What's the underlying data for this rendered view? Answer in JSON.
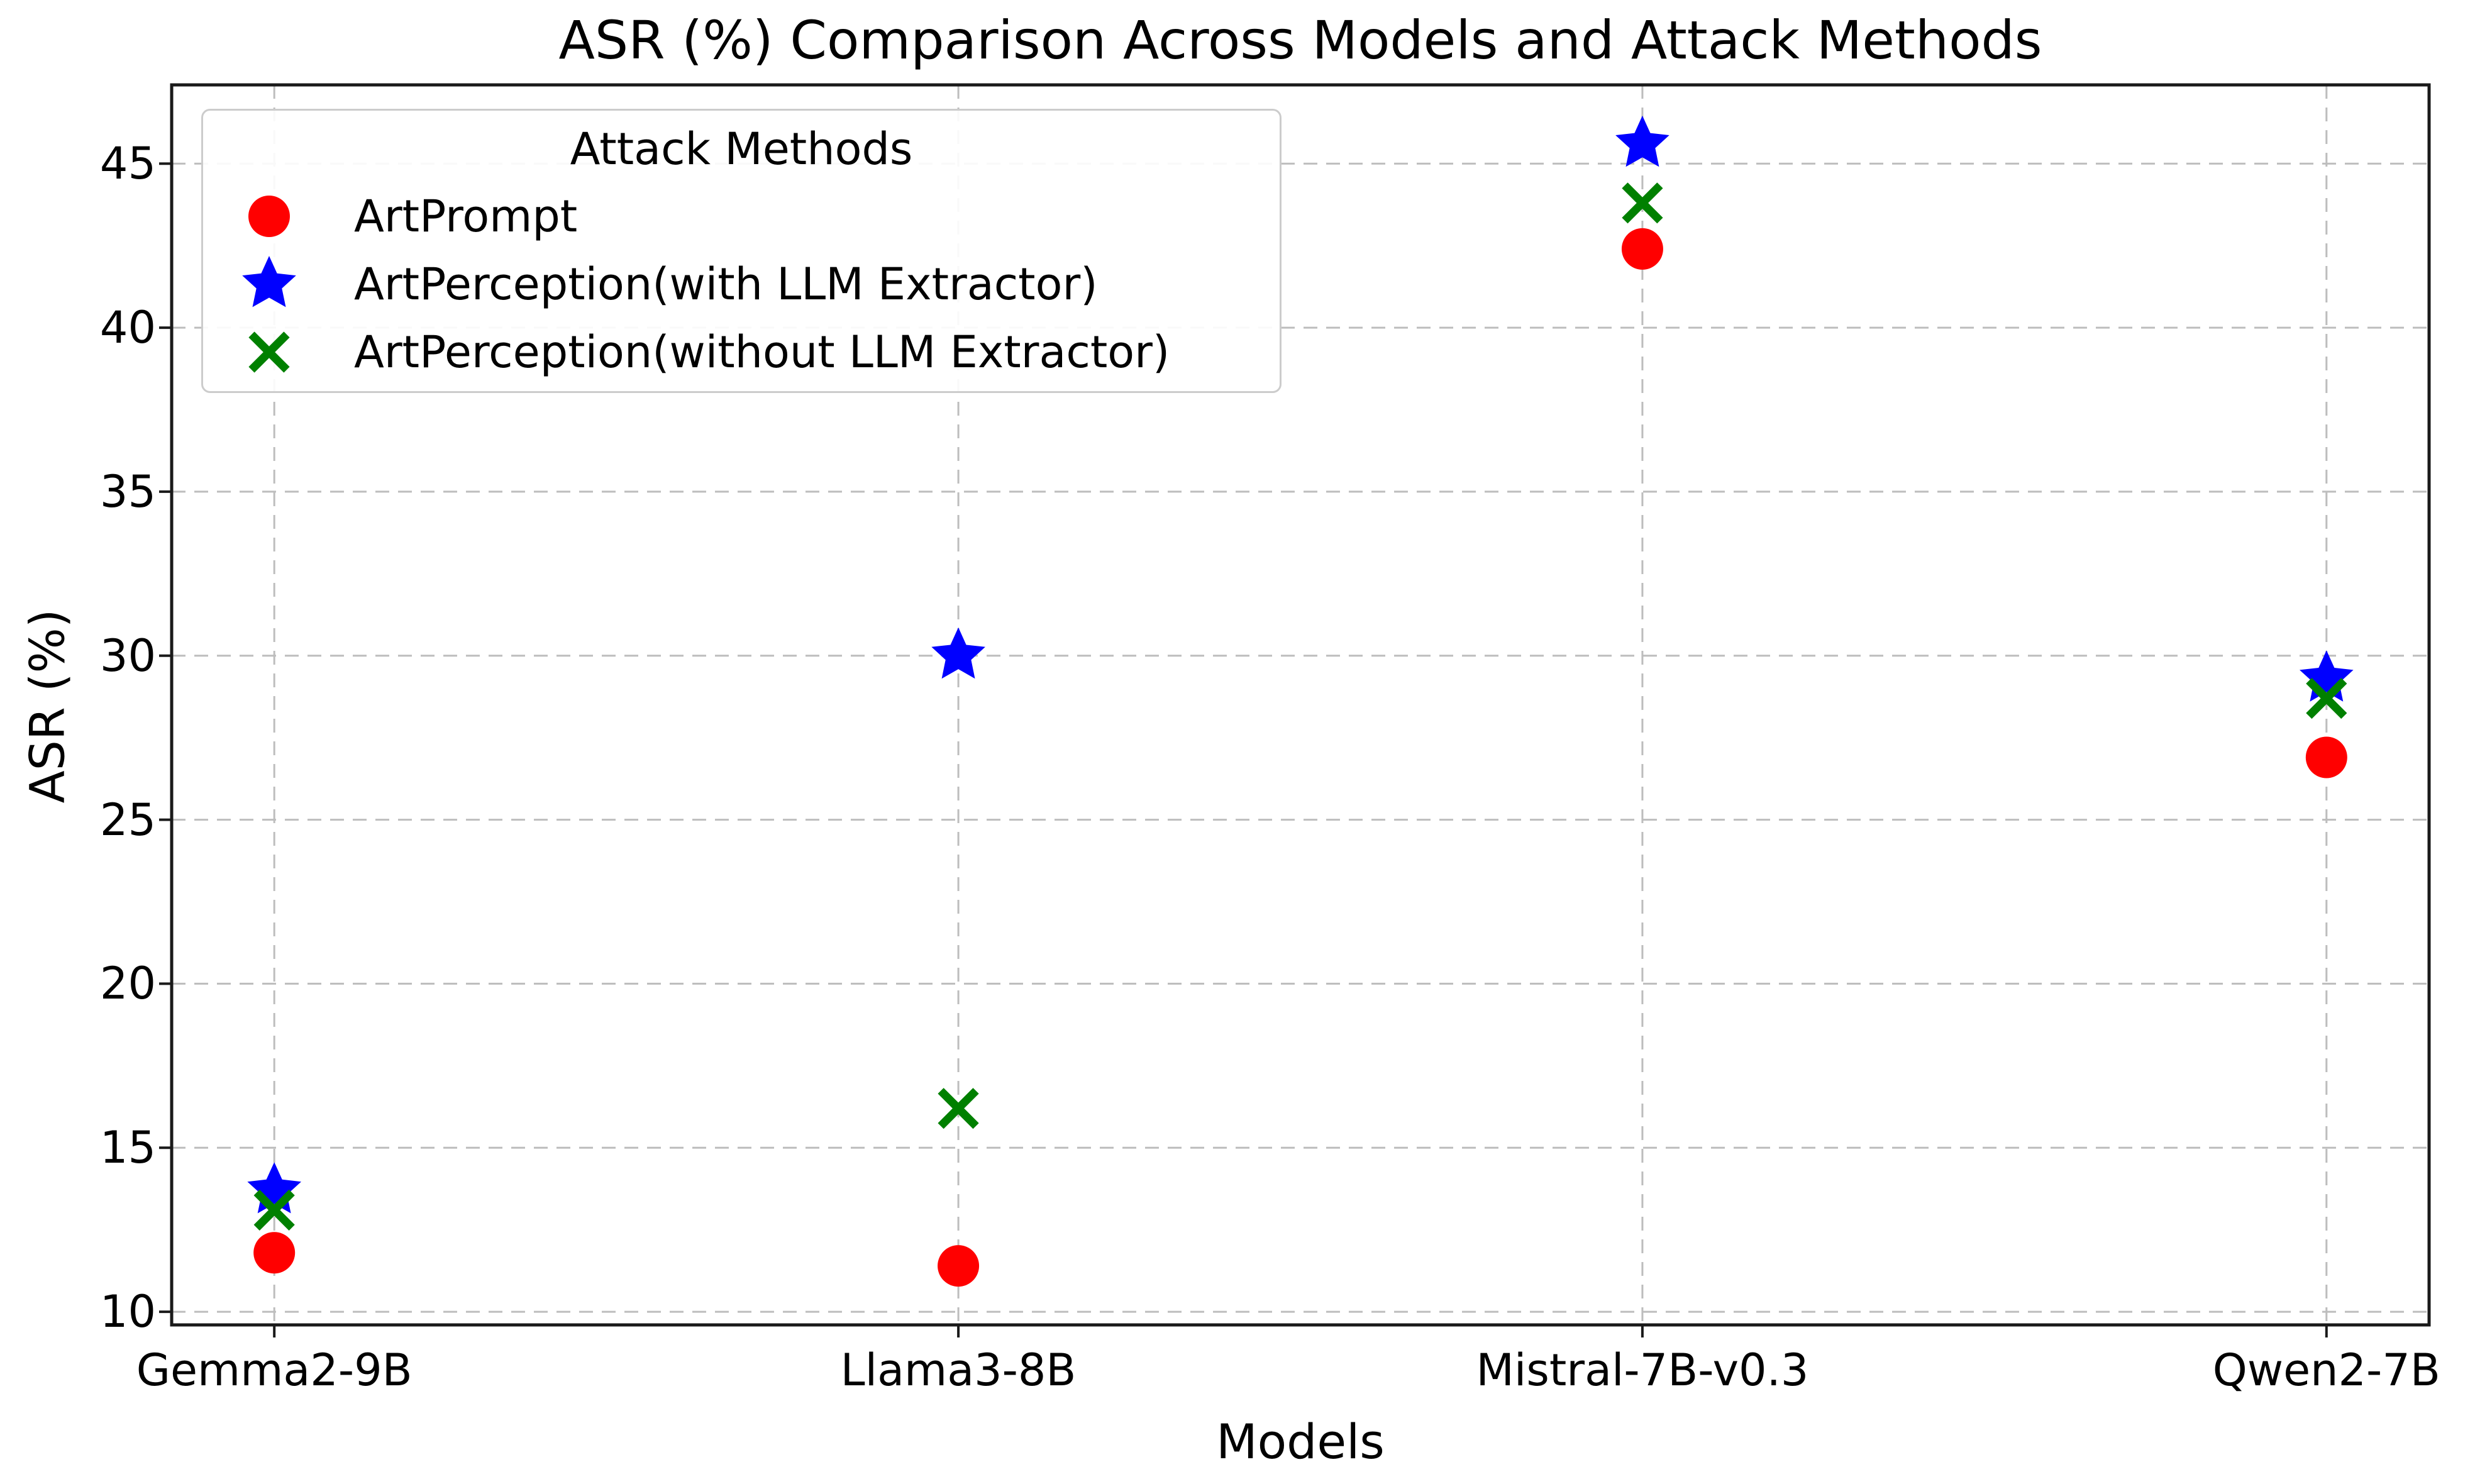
{
  "chart_data": {
    "type": "scatter",
    "title": "ASR (%) Comparison Across Models and Attack Methods",
    "xlabel": "Models",
    "ylabel": "ASR (%)",
    "categories": [
      "Gemma2-9B",
      "Llama3-8B",
      "Mistral-7B-v0.3",
      "Qwen2-7B"
    ],
    "series": [
      {
        "name": "ArtPrompt",
        "marker": "circle",
        "color": "#ff0000",
        "values": [
          11.8,
          11.4,
          42.4,
          26.9
        ]
      },
      {
        "name": "ArtPerception(with LLM Extractor)",
        "marker": "star",
        "color": "#0000ff",
        "values": [
          13.7,
          30.0,
          45.6,
          29.3
        ]
      },
      {
        "name": "ArtPerception(without LLM Extractor)",
        "marker": "x",
        "color": "#008000",
        "values": [
          13.1,
          16.2,
          43.8,
          28.7
        ]
      }
    ],
    "legend": {
      "title": "Attack Methods",
      "position": "upper left"
    },
    "yticks": [
      10,
      15,
      20,
      25,
      30,
      35,
      40,
      45
    ],
    "ylim": [
      9.6,
      47.4
    ],
    "x_margin": 0.15,
    "grid": true,
    "grid_style": "dashed",
    "colors": {
      "grid": "#bdbdbd",
      "spine": "#1a1a1a",
      "tick": "#1a1a1a",
      "legend_border": "#cccccc"
    }
  }
}
